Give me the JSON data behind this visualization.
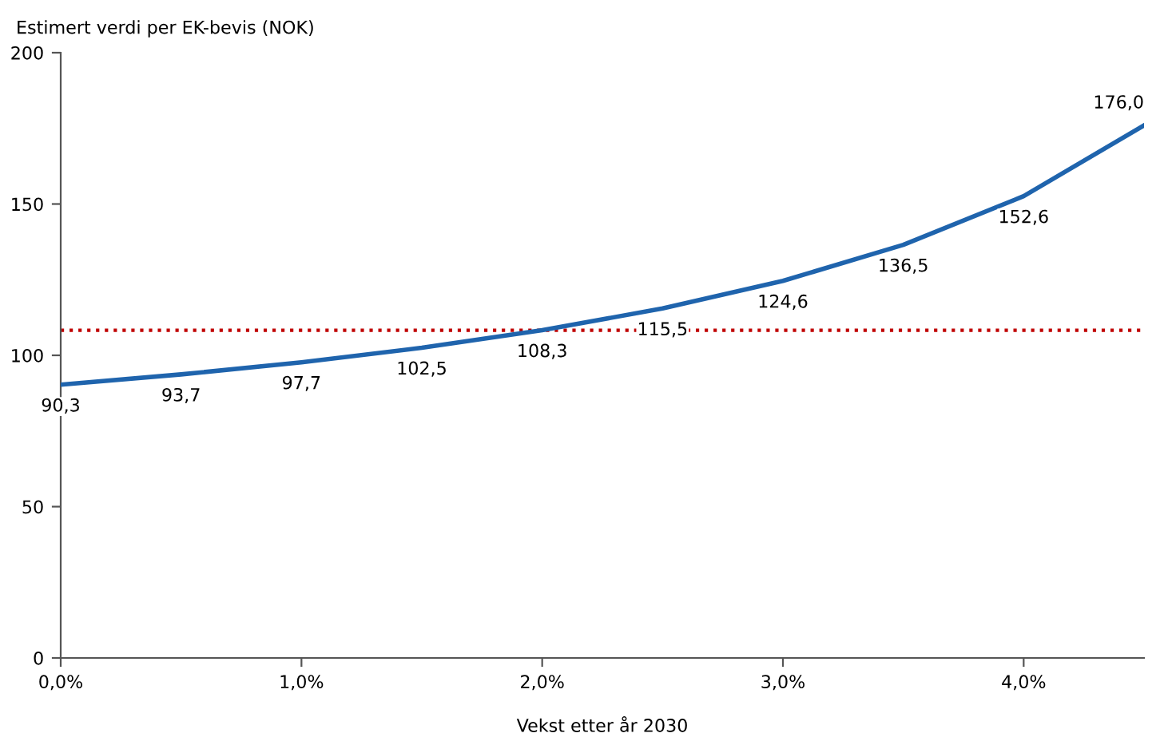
{
  "chart_data": {
    "type": "line",
    "ylabel": "Estimert verdi per EK-bevis (NOK)",
    "xlabel": "Vekst etter år 2030",
    "x": [
      0,
      0.5,
      1,
      1.5,
      2,
      2.5,
      3,
      3.5,
      4,
      4.5
    ],
    "series": [
      {
        "color": "#1f64ad",
        "values": [
          90.3,
          93.7,
          97.7,
          102.5,
          108.3,
          115.5,
          124.6,
          136.5,
          152.6,
          176.0
        ],
        "value_labels": [
          "90,3",
          "93,7",
          "97,7",
          "102,5",
          "108,3",
          "115,5",
          "124,6",
          "136,5",
          "152,6",
          "176,0"
        ]
      }
    ],
    "xlim": [
      0,
      4.5
    ],
    "xticks": [
      {
        "value": 0,
        "label": "0,0%"
      },
      {
        "value": 1,
        "label": "1,0%"
      },
      {
        "value": 2,
        "label": "2,0%"
      },
      {
        "value": 3,
        "label": "3,0%"
      },
      {
        "value": 4,
        "label": "4,0%"
      }
    ],
    "ylim": [
      0,
      200
    ],
    "yticks": [
      0,
      50,
      100,
      150,
      200
    ],
    "ref_lines": [
      {
        "axis": "y",
        "value": 108.3,
        "color": "#c00000",
        "line_style": "dotted"
      }
    ],
    "grid": false,
    "legend": false,
    "marker": "none",
    "line_style": "solid"
  }
}
